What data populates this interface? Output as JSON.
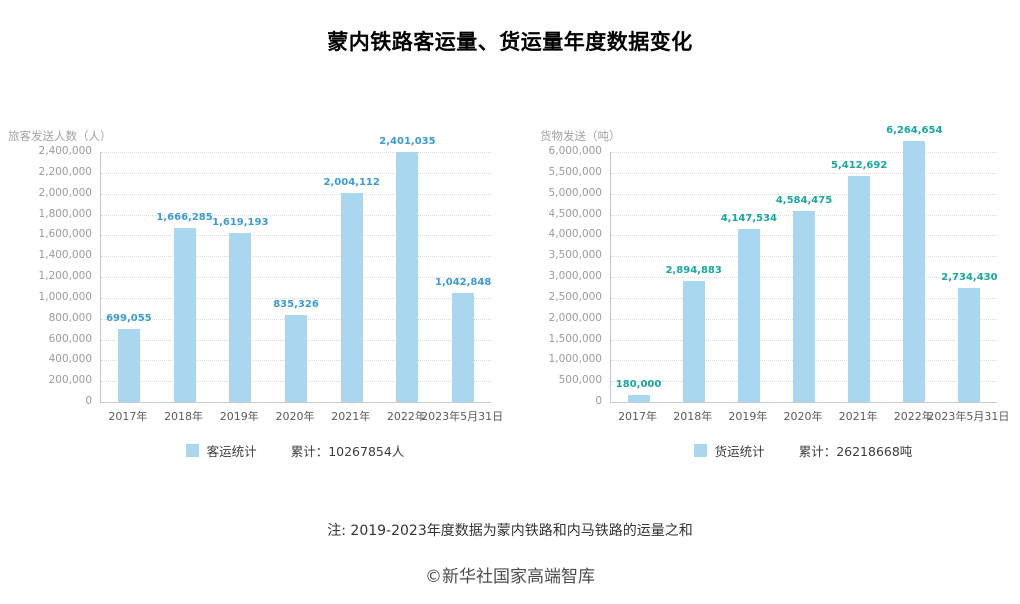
{
  "title": "蒙内铁路客运量、货运量年度数据变化",
  "note": "注: 2019-2023年度数据为蒙内铁路和内马铁路的运量之和",
  "footer": "©新华社国家高端智库",
  "colors": {
    "bar_fill": "#A9D7EF",
    "passenger_value_label": "#3B9BD4",
    "freight_value_label": "#17A79F",
    "grid_line": "#D9D9D9",
    "axis_line": "#C9C9C9",
    "tick_text": "#9B9B9B"
  },
  "chart_data": [
    {
      "type": "bar",
      "title": "客运统计",
      "ylabel": "旅客发送人数（人）",
      "xlabel": "",
      "categories": [
        "2017年",
        "2018年",
        "2019年",
        "2020年",
        "2021年",
        "2022年",
        "2023年5月31日"
      ],
      "values": [
        699055,
        1666285,
        1619193,
        835326,
        2004112,
        2401035,
        1042848
      ],
      "ylim": [
        0,
        2400000
      ],
      "ytick_interval": 200000,
      "grid": true,
      "legend": "客运统计",
      "legend_position": "bottom",
      "total_label": "累计：10267854人",
      "bar_color": "#A9D7EF",
      "value_label_color": "#3B9BD4"
    },
    {
      "type": "bar",
      "title": "货运统计",
      "ylabel": "货物发送（吨）",
      "xlabel": "",
      "categories": [
        "2017年",
        "2018年",
        "2019年",
        "2020年",
        "2021年",
        "2022年",
        "2023年5月31日"
      ],
      "values": [
        180000,
        2894883,
        4147534,
        4584475,
        5412692,
        6264654,
        2734430
      ],
      "ylim": [
        0,
        6000000
      ],
      "ytick_interval": 500000,
      "grid": true,
      "legend": "货运统计",
      "legend_position": "bottom",
      "total_label": "累计：26218668吨",
      "bar_color": "#A9D7EF",
      "value_label_color": "#17A79F"
    }
  ]
}
